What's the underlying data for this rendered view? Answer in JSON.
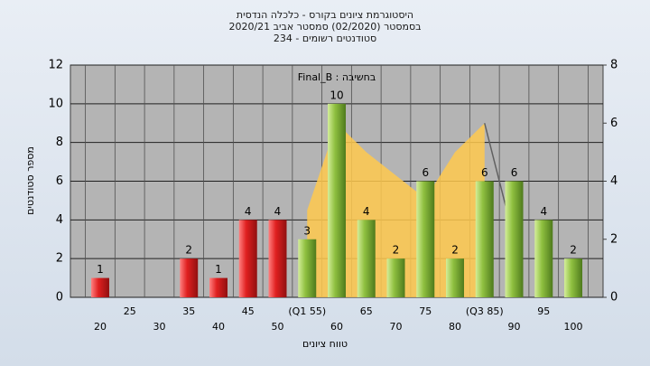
{
  "chart_data": {
    "type": "bar",
    "title": [
      "היסטוגרמת ציונים בקורס - כלכלה הנדסית",
      "בסמסטר  (02/2020)  סמסטר אביב 2020/21",
      "סטודנטים רשומים - 234"
    ],
    "annotation": "Final_B : בחשיבה",
    "x_label": "טווח ציונים",
    "y_label": "מספר סטודנטים",
    "categories": [
      "20",
      "25",
      "30",
      "35",
      "40",
      "45",
      "50",
      "(Q1 55)",
      "60",
      "65",
      "70",
      "75",
      "80",
      "(Q3 85)",
      "90",
      "95",
      "100"
    ],
    "values": [
      1,
      0,
      0,
      2,
      1,
      4,
      4,
      3,
      10,
      4,
      2,
      6,
      2,
      6,
      6,
      4,
      2
    ],
    "colors": [
      "#e02020",
      "#e02020",
      "#e02020",
      "#e02020",
      "#e02020",
      "#e02020",
      "#e02020",
      "#8fc040",
      "#8fc040",
      "#8fc040",
      "#8fc040",
      "#8fc040",
      "#8fc040",
      "#8fc040",
      "#8fc040",
      "#8fc040",
      "#8fc040"
    ],
    "area": {
      "axis": "y2",
      "color": "#ffc94d",
      "line_color": "#606060",
      "values": [
        null,
        null,
        null,
        null,
        null,
        null,
        null,
        3,
        6,
        5,
        4.2,
        3.4,
        5,
        6,
        2,
        null,
        null
      ]
    },
    "ylim": [
      0,
      12
    ],
    "yticks": [
      0,
      2,
      4,
      6,
      8,
      10,
      12
    ],
    "y2lim": [
      0,
      8
    ],
    "y2ticks": [
      0,
      2,
      4,
      6,
      8
    ],
    "grid": true
  }
}
